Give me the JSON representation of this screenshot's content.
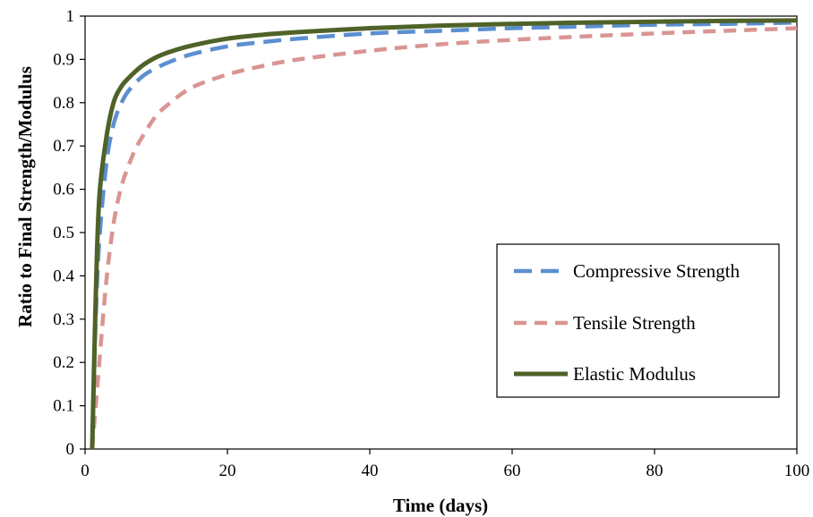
{
  "chart_data": {
    "type": "line",
    "title": "",
    "xlabel": "Time (days)",
    "ylabel": "Ratio to Final Strength/Modulus",
    "xlim": [
      0,
      100
    ],
    "ylim": [
      0,
      1
    ],
    "x_ticks": [
      "0",
      "20",
      "40",
      "60",
      "80",
      "100"
    ],
    "y_ticks": [
      "0",
      "0.1",
      "0.2",
      "0.3",
      "0.4",
      "0.5",
      "0.6",
      "0.7",
      "0.8",
      "0.9",
      "1"
    ],
    "grid": false,
    "legend_position": "right",
    "series": [
      {
        "name": "Compressive Strength",
        "color": "#5B8FD0",
        "style": "dashed",
        "points": [
          [
            1,
            0
          ],
          [
            1.5,
            0.3
          ],
          [
            2,
            0.48
          ],
          [
            3,
            0.66
          ],
          [
            4,
            0.75
          ],
          [
            5,
            0.795
          ],
          [
            6,
            0.825
          ],
          [
            8,
            0.86
          ],
          [
            10,
            0.88
          ],
          [
            12,
            0.895
          ],
          [
            15,
            0.912
          ],
          [
            20,
            0.93
          ],
          [
            25,
            0.94
          ],
          [
            30,
            0.948
          ],
          [
            40,
            0.96
          ],
          [
            50,
            0.966
          ],
          [
            60,
            0.972
          ],
          [
            70,
            0.976
          ],
          [
            80,
            0.98
          ],
          [
            90,
            0.982
          ],
          [
            100,
            0.985
          ]
        ]
      },
      {
        "name": "Tensile Strength",
        "color": "#D99593",
        "style": "dashed",
        "points": [
          [
            1,
            0
          ],
          [
            1.5,
            0.1
          ],
          [
            2,
            0.2
          ],
          [
            3,
            0.39
          ],
          [
            4,
            0.52
          ],
          [
            5,
            0.6
          ],
          [
            6,
            0.65
          ],
          [
            7,
            0.69
          ],
          [
            8,
            0.72
          ],
          [
            10,
            0.77
          ],
          [
            12,
            0.8
          ],
          [
            15,
            0.835
          ],
          [
            20,
            0.865
          ],
          [
            25,
            0.885
          ],
          [
            30,
            0.9
          ],
          [
            40,
            0.92
          ],
          [
            50,
            0.935
          ],
          [
            60,
            0.945
          ],
          [
            70,
            0.953
          ],
          [
            80,
            0.96
          ],
          [
            90,
            0.966
          ],
          [
            100,
            0.972
          ]
        ]
      },
      {
        "name": "Elastic Modulus",
        "color": "#4F6228",
        "style": "solid",
        "points": [
          [
            1,
            0
          ],
          [
            1.5,
            0.35
          ],
          [
            2,
            0.58
          ],
          [
            3,
            0.72
          ],
          [
            4,
            0.8
          ],
          [
            5,
            0.835
          ],
          [
            6,
            0.855
          ],
          [
            8,
            0.885
          ],
          [
            10,
            0.905
          ],
          [
            12,
            0.918
          ],
          [
            15,
            0.932
          ],
          [
            20,
            0.948
          ],
          [
            25,
            0.957
          ],
          [
            30,
            0.963
          ],
          [
            40,
            0.972
          ],
          [
            50,
            0.978
          ],
          [
            60,
            0.982
          ],
          [
            70,
            0.985
          ],
          [
            80,
            0.987
          ],
          [
            90,
            0.989
          ],
          [
            100,
            0.99
          ]
        ]
      }
    ]
  }
}
